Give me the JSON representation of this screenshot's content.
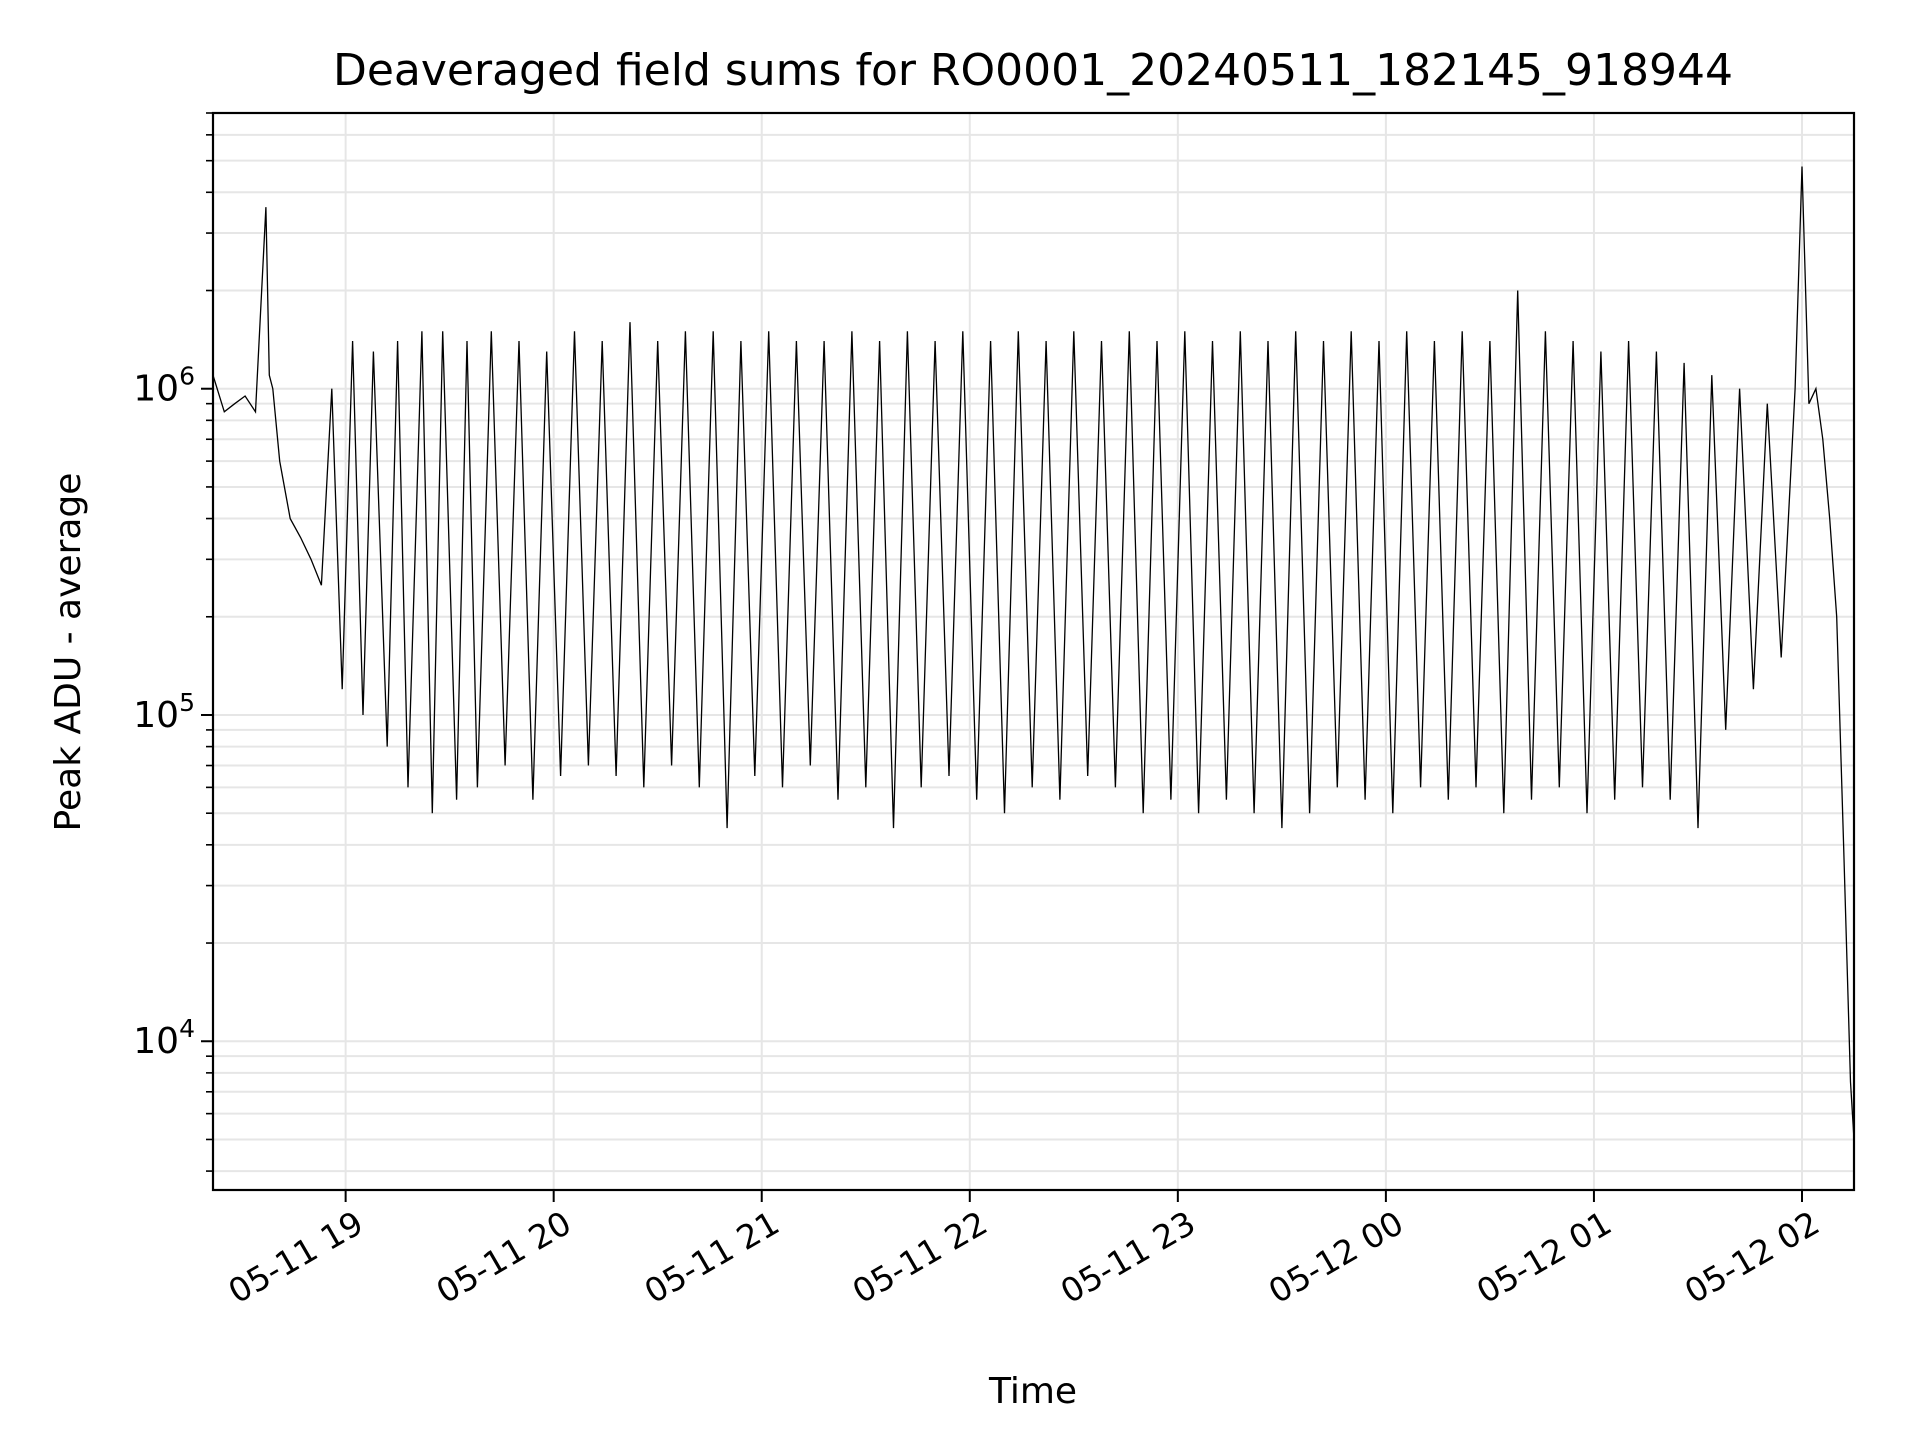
{
  "chart_data": {
    "type": "line",
    "title": "Deaveraged field sums for RO0001_20240511_182145_918944",
    "xlabel": "Time",
    "ylabel": "Peak ADU - average",
    "yscale": "log",
    "xlim": [
      "2024-05-11T18:21:45",
      "2024-05-12T02:15:00"
    ],
    "ylim": [
      3500,
      7000000
    ],
    "grid": true,
    "line_color": "#000000",
    "grid_color": "#e6e6e6",
    "x_ticks": [
      {
        "value": "2024-05-11T19:00:00",
        "label": "05-11 19"
      },
      {
        "value": "2024-05-11T20:00:00",
        "label": "05-11 20"
      },
      {
        "value": "2024-05-11T21:00:00",
        "label": "05-11 21"
      },
      {
        "value": "2024-05-11T22:00:00",
        "label": "05-11 22"
      },
      {
        "value": "2024-05-11T23:00:00",
        "label": "05-11 23"
      },
      {
        "value": "2024-05-12T00:00:00",
        "label": "05-12 00"
      },
      {
        "value": "2024-05-12T01:00:00",
        "label": "05-12 01"
      },
      {
        "value": "2024-05-12T02:00:00",
        "label": "05-12 02"
      }
    ],
    "y_ticks": [
      {
        "value": 10000,
        "base": "10",
        "exp": "4"
      },
      {
        "value": 100000,
        "base": "10",
        "exp": "5"
      },
      {
        "value": 1000000,
        "base": "10",
        "exp": "6"
      }
    ],
    "series": [
      {
        "x": [
          "2024-05-11T18:21:45",
          "2024-05-11T18:25:00",
          "2024-05-11T18:28:00",
          "2024-05-11T18:31:00",
          "2024-05-11T18:34:00",
          "2024-05-11T18:37:00",
          "2024-05-11T18:38:00",
          "2024-05-11T18:39:00",
          "2024-05-11T18:41:00",
          "2024-05-11T18:44:00",
          "2024-05-11T18:47:00",
          "2024-05-11T18:50:00",
          "2024-05-11T18:53:00",
          "2024-05-11T18:56:00",
          "2024-05-11T18:59:00",
          "2024-05-11T19:02:00",
          "2024-05-11T19:05:00",
          "2024-05-11T19:08:00",
          "2024-05-11T19:12:00",
          "2024-05-11T19:15:00",
          "2024-05-11T19:18:00",
          "2024-05-11T19:22:00",
          "2024-05-11T19:25:00",
          "2024-05-11T19:28:00",
          "2024-05-11T19:32:00",
          "2024-05-11T19:35:00",
          "2024-05-11T19:38:00",
          "2024-05-11T19:42:00",
          "2024-05-11T19:46:00",
          "2024-05-11T19:50:00",
          "2024-05-11T19:54:00",
          "2024-05-11T19:58:00",
          "2024-05-11T20:02:00",
          "2024-05-11T20:06:00",
          "2024-05-11T20:10:00",
          "2024-05-11T20:14:00",
          "2024-05-11T20:18:00",
          "2024-05-11T20:22:00",
          "2024-05-11T20:26:00",
          "2024-05-11T20:30:00",
          "2024-05-11T20:34:00",
          "2024-05-11T20:38:00",
          "2024-05-11T20:42:00",
          "2024-05-11T20:46:00",
          "2024-05-11T20:50:00",
          "2024-05-11T20:54:00",
          "2024-05-11T20:58:00",
          "2024-05-11T21:02:00",
          "2024-05-11T21:06:00",
          "2024-05-11T21:10:00",
          "2024-05-11T21:14:00",
          "2024-05-11T21:18:00",
          "2024-05-11T21:22:00",
          "2024-05-11T21:26:00",
          "2024-05-11T21:30:00",
          "2024-05-11T21:34:00",
          "2024-05-11T21:38:00",
          "2024-05-11T21:42:00",
          "2024-05-11T21:46:00",
          "2024-05-11T21:50:00",
          "2024-05-11T21:54:00",
          "2024-05-11T21:58:00",
          "2024-05-11T22:02:00",
          "2024-05-11T22:06:00",
          "2024-05-11T22:10:00",
          "2024-05-11T22:14:00",
          "2024-05-11T22:18:00",
          "2024-05-11T22:22:00",
          "2024-05-11T22:26:00",
          "2024-05-11T22:30:00",
          "2024-05-11T22:34:00",
          "2024-05-11T22:38:00",
          "2024-05-11T22:42:00",
          "2024-05-11T22:46:00",
          "2024-05-11T22:50:00",
          "2024-05-11T22:54:00",
          "2024-05-11T22:58:00",
          "2024-05-11T23:02:00",
          "2024-05-11T23:06:00",
          "2024-05-11T23:10:00",
          "2024-05-11T23:14:00",
          "2024-05-11T23:18:00",
          "2024-05-11T23:22:00",
          "2024-05-11T23:26:00",
          "2024-05-11T23:30:00",
          "2024-05-11T23:34:00",
          "2024-05-11T23:38:00",
          "2024-05-11T23:42:00",
          "2024-05-11T23:46:00",
          "2024-05-11T23:50:00",
          "2024-05-11T23:54:00",
          "2024-05-11T23:58:00",
          "2024-05-12T00:02:00",
          "2024-05-12T00:06:00",
          "2024-05-12T00:10:00",
          "2024-05-12T00:14:00",
          "2024-05-12T00:18:00",
          "2024-05-12T00:22:00",
          "2024-05-12T00:26:00",
          "2024-05-12T00:30:00",
          "2024-05-12T00:34:00",
          "2024-05-12T00:38:00",
          "2024-05-12T00:42:00",
          "2024-05-12T00:46:00",
          "2024-05-12T00:50:00",
          "2024-05-12T00:54:00",
          "2024-05-12T00:58:00",
          "2024-05-12T01:02:00",
          "2024-05-12T01:06:00",
          "2024-05-12T01:10:00",
          "2024-05-12T01:14:00",
          "2024-05-12T01:18:00",
          "2024-05-12T01:22:00",
          "2024-05-12T01:26:00",
          "2024-05-12T01:30:00",
          "2024-05-12T01:34:00",
          "2024-05-12T01:38:00",
          "2024-05-12T01:42:00",
          "2024-05-12T01:46:00",
          "2024-05-12T01:50:00",
          "2024-05-12T01:54:00",
          "2024-05-12T01:58:00",
          "2024-05-12T02:00:00",
          "2024-05-12T02:02:00",
          "2024-05-12T02:04:00",
          "2024-05-12T02:06:00",
          "2024-05-12T02:08:00",
          "2024-05-12T02:10:00",
          "2024-05-12T02:12:00",
          "2024-05-12T02:14:00",
          "2024-05-12T02:15:00"
        ],
        "y": [
          1100000,
          850000,
          900000,
          950000,
          850000,
          3600000,
          1100000,
          1000000,
          600000,
          400000,
          350000,
          300000,
          250000,
          1000000,
          120000,
          1400000,
          100000,
          1300000,
          80000,
          1400000,
          60000,
          1500000,
          50000,
          1500000,
          55000,
          1400000,
          60000,
          1500000,
          70000,
          1400000,
          55000,
          1300000,
          65000,
          1500000,
          70000,
          1400000,
          65000,
          1600000,
          60000,
          1400000,
          70000,
          1500000,
          60000,
          1500000,
          45000,
          1400000,
          65000,
          1500000,
          60000,
          1400000,
          70000,
          1400000,
          55000,
          1500000,
          60000,
          1400000,
          45000,
          1500000,
          60000,
          1400000,
          65000,
          1500000,
          55000,
          1400000,
          50000,
          1500000,
          60000,
          1400000,
          55000,
          1500000,
          65000,
          1400000,
          60000,
          1500000,
          50000,
          1400000,
          55000,
          1500000,
          50000,
          1400000,
          55000,
          1500000,
          50000,
          1400000,
          45000,
          1500000,
          50000,
          1400000,
          60000,
          1500000,
          55000,
          1400000,
          50000,
          1500000,
          60000,
          1400000,
          55000,
          1500000,
          60000,
          1400000,
          50000,
          2000000,
          55000,
          1500000,
          60000,
          1400000,
          50000,
          1300000,
          55000,
          1400000,
          60000,
          1300000,
          55000,
          1200000,
          45000,
          1100000,
          90000,
          1000000,
          120000,
          900000,
          150000,
          1000000,
          4800000,
          900000,
          1000000,
          700000,
          400000,
          200000,
          40000,
          7500,
          5000
        ]
      }
    ]
  }
}
